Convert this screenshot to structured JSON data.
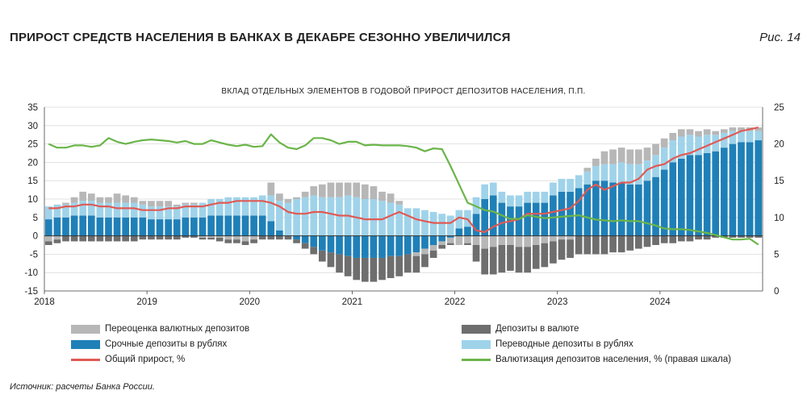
{
  "header": {
    "title": "ПРИРОСТ СРЕДСТВ НАСЕЛЕНИЯ В БАНКАХ В ДЕКАБРЕ СЕЗОННО УВЕЛИЧИЛСЯ",
    "figure": "Рис. 14"
  },
  "source": "Источник: расчеты Банка России.",
  "colors": {
    "reval": "#b7b7b7",
    "fx": "#6e6e6e",
    "term": "#1f80b8",
    "transfer": "#9fd3ea",
    "total": "#e05a54",
    "dollarization": "#6bb54a"
  },
  "legend": [
    {
      "label": "Переоценка валютных депозитов",
      "kind": "bar",
      "color": "#b7b7b7"
    },
    {
      "label": "Депозиты в валюте",
      "kind": "bar",
      "color": "#6e6e6e"
    },
    {
      "label": "Срочные депозиты в рублях",
      "kind": "bar",
      "color": "#1f80b8"
    },
    {
      "label": "Переводные депозиты в рублях",
      "kind": "bar",
      "color": "#9fd3ea"
    },
    {
      "label": "Общий прирост, %",
      "kind": "line",
      "color": "#e05a54"
    },
    {
      "label": "Валютизация депозитов населения, % (правая шкала)",
      "kind": "line",
      "color": "#6bb54a"
    }
  ],
  "chart_data": {
    "type": "bar",
    "title": "ВКЛАД ОТДЕЛЬНЫХ ЭЛЕМЕНТОВ В ГОДОВОЙ ПРИРОСТ ДЕПОЗИТОВ НАСЕЛЕНИЯ, П.П.",
    "x_labels": [
      "2018",
      "2019",
      "2020",
      "2021",
      "2022",
      "2023",
      "2024"
    ],
    "y_left": {
      "min": -15,
      "max": 35,
      "step": 5,
      "ticks": [
        "35",
        "30",
        "25",
        "20",
        "15",
        "10",
        "5",
        "0",
        "-5",
        "-10",
        "-15"
      ]
    },
    "y_right": {
      "min": 0,
      "max": 25,
      "step": 5,
      "ticks": [
        "25",
        "20",
        "15",
        "10",
        "5",
        "0"
      ]
    },
    "grid": true,
    "legend_position": "bottom",
    "months": [
      "2018-01",
      "2018-02",
      "2018-03",
      "2018-04",
      "2018-05",
      "2018-06",
      "2018-07",
      "2018-08",
      "2018-09",
      "2018-10",
      "2018-11",
      "2018-12",
      "2019-01",
      "2019-02",
      "2019-03",
      "2019-04",
      "2019-05",
      "2019-06",
      "2019-07",
      "2019-08",
      "2019-09",
      "2019-10",
      "2019-11",
      "2019-12",
      "2020-01",
      "2020-02",
      "2020-03",
      "2020-04",
      "2020-05",
      "2020-06",
      "2020-07",
      "2020-08",
      "2020-09",
      "2020-10",
      "2020-11",
      "2020-12",
      "2021-01",
      "2021-02",
      "2021-03",
      "2021-04",
      "2021-05",
      "2021-06",
      "2021-07",
      "2021-08",
      "2021-09",
      "2021-10",
      "2021-11",
      "2021-12",
      "2022-01",
      "2022-02",
      "2022-03",
      "2022-04",
      "2022-05",
      "2022-06",
      "2022-07",
      "2022-08",
      "2022-09",
      "2022-10",
      "2022-11",
      "2022-12",
      "2023-01",
      "2023-02",
      "2023-03",
      "2023-04",
      "2023-05",
      "2023-06",
      "2023-07",
      "2023-08",
      "2023-09",
      "2023-10",
      "2023-11",
      "2023-12",
      "2024-01",
      "2024-02",
      "2024-03",
      "2024-04",
      "2024-05",
      "2024-06",
      "2024-07",
      "2024-08",
      "2024-09",
      "2024-10",
      "2024-11",
      "2024-12"
    ],
    "series": [
      {
        "name": "Срочные депозиты в рублях",
        "key": "term",
        "values": [
          4.5,
          5.0,
          5.0,
          5.5,
          5.5,
          5.5,
          5.0,
          5.0,
          5.0,
          5.0,
          5.0,
          5.0,
          4.5,
          4.5,
          4.5,
          4.5,
          5.0,
          5.0,
          5.0,
          5.5,
          5.5,
          5.5,
          5.5,
          5.5,
          5.5,
          5.5,
          4.0,
          1.5,
          0.0,
          -1.0,
          -2.0,
          -3.0,
          -4.0,
          -4.5,
          -5.0,
          -5.5,
          -6.0,
          -6.0,
          -6.0,
          -6.0,
          -5.5,
          -5.5,
          -5.0,
          -4.5,
          -3.5,
          -2.5,
          -1.5,
          -0.5,
          2.0,
          2.5,
          6.0,
          10.0,
          11.0,
          9.0,
          8.0,
          8.0,
          9.0,
          9.0,
          9.0,
          11.0,
          12.0,
          12.0,
          13.0,
          14.0,
          15.0,
          15.0,
          14.5,
          14.5,
          14.0,
          14.0,
          15.0,
          16.0,
          18.0,
          20.0,
          21.0,
          22.0,
          22.0,
          22.5,
          23.0,
          24.0,
          25.0,
          25.5,
          25.5,
          26.0
        ]
      },
      {
        "name": "Переводные депозиты в рублях",
        "key": "transfer",
        "values": [
          3.5,
          3.5,
          3.5,
          3.5,
          4.0,
          4.0,
          4.0,
          4.0,
          4.0,
          4.0,
          4.0,
          3.5,
          3.5,
          3.5,
          3.5,
          3.5,
          3.5,
          3.5,
          4.0,
          4.5,
          4.5,
          5.0,
          5.0,
          5.0,
          5.0,
          5.5,
          7.0,
          8.0,
          9.0,
          10.0,
          10.5,
          11.0,
          10.5,
          10.5,
          10.5,
          11.0,
          10.5,
          10.0,
          10.0,
          9.5,
          9.0,
          8.5,
          7.5,
          7.5,
          7.0,
          6.5,
          6.0,
          5.5,
          5.0,
          4.5,
          4.5,
          4.0,
          3.5,
          3.0,
          3.0,
          3.0,
          3.0,
          3.0,
          3.0,
          3.5,
          3.5,
          3.5,
          3.5,
          3.5,
          4.0,
          4.5,
          5.0,
          5.5,
          5.5,
          5.5,
          5.5,
          6.0,
          6.0,
          6.0,
          6.0,
          5.5,
          5.0,
          5.0,
          4.5,
          4.0,
          3.5,
          3.0,
          3.0,
          2.5
        ]
      },
      {
        "name": "Переоценка валютных депозитов",
        "key": "reval",
        "values": [
          -1.5,
          -1.0,
          0.5,
          1.5,
          2.5,
          2.0,
          1.5,
          1.5,
          2.5,
          2.0,
          1.5,
          1.0,
          1.5,
          1.5,
          1.5,
          0.5,
          0.5,
          0.5,
          -0.5,
          -0.5,
          -0.5,
          -1.0,
          -1.0,
          -1.5,
          -1.0,
          0.0,
          3.5,
          2.0,
          1.0,
          0.5,
          1.5,
          2.5,
          3.5,
          4.0,
          4.0,
          3.5,
          4.0,
          4.0,
          3.5,
          2.5,
          2.5,
          1.0,
          0.0,
          -1.0,
          -1.5,
          -1.5,
          -1.0,
          -1.5,
          -2.5,
          -2.0,
          -2.5,
          -3.5,
          -3.0,
          -2.5,
          -2.5,
          -3.0,
          -3.0,
          -2.5,
          -2.0,
          -1.5,
          -1.0,
          -1.0,
          0.0,
          1.0,
          2.0,
          3.5,
          4.0,
          4.0,
          4.0,
          4.0,
          3.5,
          3.0,
          2.5,
          2.0,
          2.0,
          1.5,
          1.5,
          1.5,
          1.0,
          1.0,
          1.0,
          1.0,
          1.0,
          1.0
        ]
      },
      {
        "name": "Депозиты в валюте",
        "key": "fx",
        "values": [
          -1.0,
          -1.0,
          -1.5,
          -1.5,
          -1.5,
          -1.5,
          -1.5,
          -1.5,
          -1.5,
          -1.5,
          -1.5,
          -1.0,
          -1.0,
          -1.0,
          -1.0,
          -1.0,
          -0.5,
          -0.5,
          -0.5,
          -0.5,
          -1.0,
          -1.0,
          -1.0,
          -1.0,
          -1.0,
          -1.0,
          -1.0,
          -1.0,
          -1.0,
          -1.0,
          -1.5,
          -2.0,
          -3.0,
          -4.0,
          -5.0,
          -5.5,
          -6.0,
          -6.5,
          -6.5,
          -6.0,
          -6.0,
          -5.5,
          -5.0,
          -4.5,
          -3.5,
          -2.0,
          -1.0,
          -0.5,
          0.0,
          -0.5,
          -4.5,
          -7.0,
          -7.5,
          -7.5,
          -7.0,
          -7.0,
          -7.0,
          -6.5,
          -6.5,
          -6.0,
          -5.5,
          -5.0,
          -5.0,
          -5.0,
          -5.0,
          -5.0,
          -4.5,
          -4.5,
          -4.0,
          -3.5,
          -3.0,
          -2.5,
          -2.0,
          -2.0,
          -1.5,
          -1.5,
          -1.0,
          -1.0,
          -0.5,
          -0.5,
          -0.5,
          -0.5,
          -0.5,
          -0.5
        ]
      }
    ],
    "lines": [
      {
        "name": "Общий прирост, %",
        "key": "total",
        "axis": "left",
        "values": [
          7.5,
          7.5,
          8.0,
          8.0,
          8.5,
          8.5,
          8.0,
          8.0,
          7.5,
          7.5,
          7.5,
          7.0,
          7.0,
          7.0,
          7.5,
          7.5,
          8.0,
          8.0,
          8.0,
          8.5,
          9.0,
          9.0,
          9.5,
          9.5,
          9.5,
          9.5,
          9.0,
          8.0,
          6.5,
          6.0,
          6.0,
          6.5,
          6.5,
          6.0,
          5.5,
          5.5,
          5.0,
          4.5,
          4.5,
          4.5,
          5.5,
          6.5,
          5.5,
          4.5,
          4.0,
          3.5,
          3.5,
          3.5,
          5.0,
          4.5,
          1.5,
          1.0,
          2.5,
          3.5,
          4.0,
          4.5,
          6.0,
          6.0,
          6.0,
          6.5,
          7.0,
          7.5,
          9.5,
          12.5,
          14.0,
          12.5,
          13.5,
          14.5,
          14.5,
          15.5,
          18.0,
          19.0,
          19.5,
          21.0,
          22.0,
          22.5,
          23.5,
          24.5,
          25.5,
          26.5,
          27.5,
          28.5,
          29.0,
          29.5
        ]
      },
      {
        "name": "Валютизация депозитов населения, % (правая шкала)",
        "key": "dollarization",
        "axis": "right",
        "values": [
          20.0,
          19.5,
          19.5,
          19.8,
          19.8,
          19.6,
          19.8,
          20.8,
          20.3,
          20.0,
          20.3,
          20.5,
          20.6,
          20.5,
          20.4,
          20.2,
          20.4,
          20.0,
          20.0,
          20.5,
          20.2,
          19.9,
          19.7,
          19.9,
          19.6,
          19.7,
          21.3,
          20.2,
          19.5,
          19.3,
          19.8,
          20.8,
          20.8,
          20.5,
          20.0,
          20.3,
          20.3,
          19.8,
          19.9,
          19.8,
          19.8,
          19.8,
          19.7,
          19.5,
          19.0,
          19.4,
          19.3,
          17.0,
          14.5,
          12.0,
          11.5,
          11.0,
          10.8,
          10.3,
          9.8,
          9.8,
          10.3,
          10.1,
          9.9,
          10.0,
          10.1,
          10.2,
          10.3,
          10.0,
          9.7,
          9.6,
          9.5,
          9.6,
          9.5,
          9.5,
          9.2,
          8.9,
          8.5,
          8.4,
          8.4,
          8.3,
          8.1,
          7.9,
          7.6,
          7.3,
          7.0,
          7.0,
          7.1,
          6.3
        ]
      }
    ]
  }
}
